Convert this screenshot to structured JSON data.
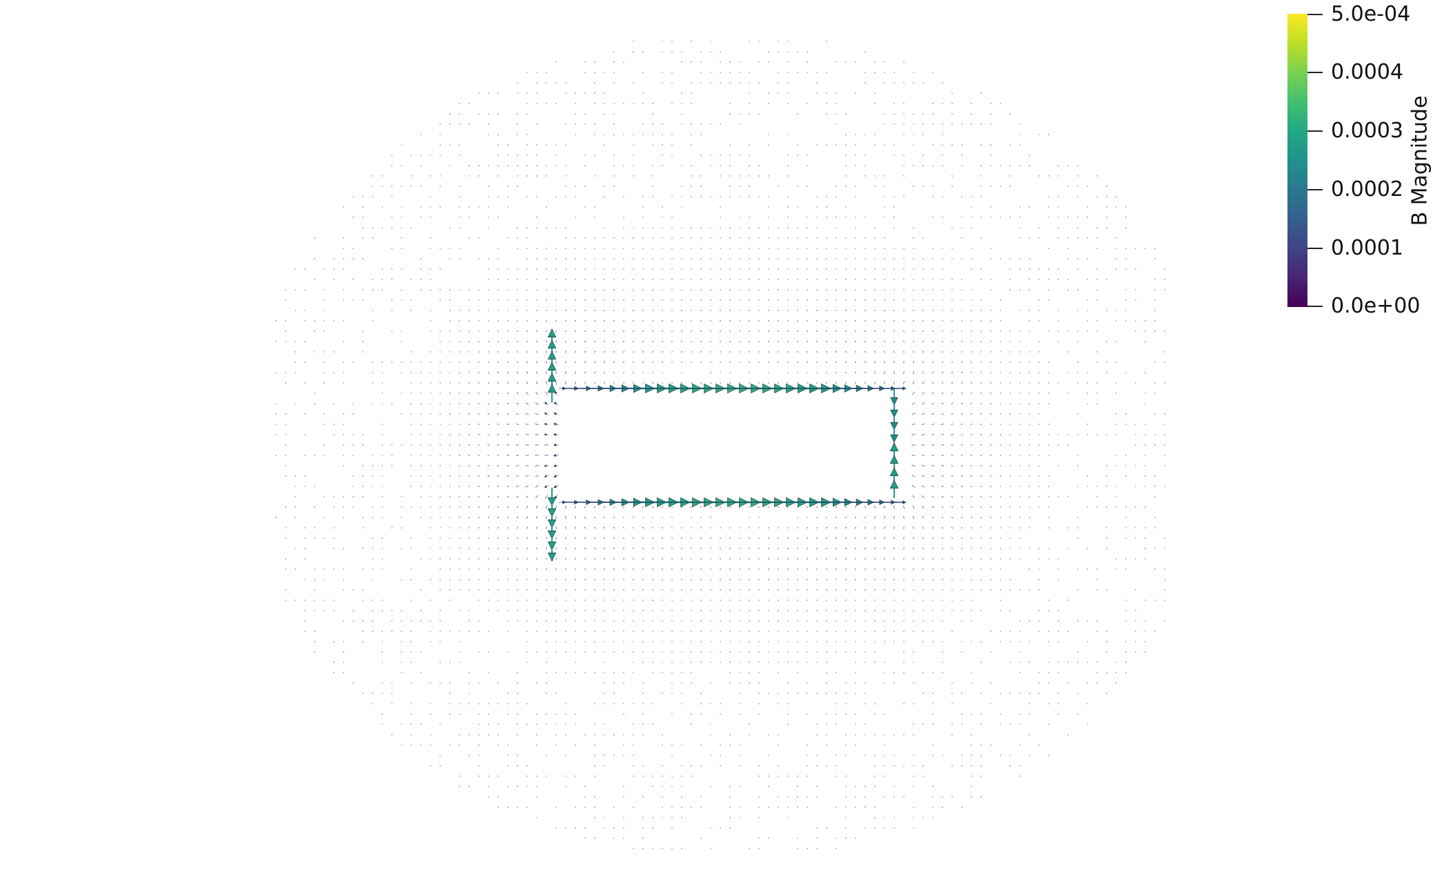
{
  "colorbar": {
    "title": "B Magnitude",
    "colormap": "viridis",
    "range": [
      0.0,
      0.0005
    ],
    "ticks": [
      {
        "value": 0.0005,
        "label": "5.0e-04"
      },
      {
        "value": 0.0004,
        "label": "0.0004"
      },
      {
        "value": 0.0003,
        "label": "0.0003"
      },
      {
        "value": 0.0002,
        "label": "0.0002"
      },
      {
        "value": 0.0001,
        "label": "0.0001"
      },
      {
        "value": 0.0,
        "label": "0.0e+00"
      }
    ]
  },
  "colors": {
    "background": "#ffffff",
    "low": "#440154",
    "mid": "#21918c",
    "high": "#fde725"
  }
}
